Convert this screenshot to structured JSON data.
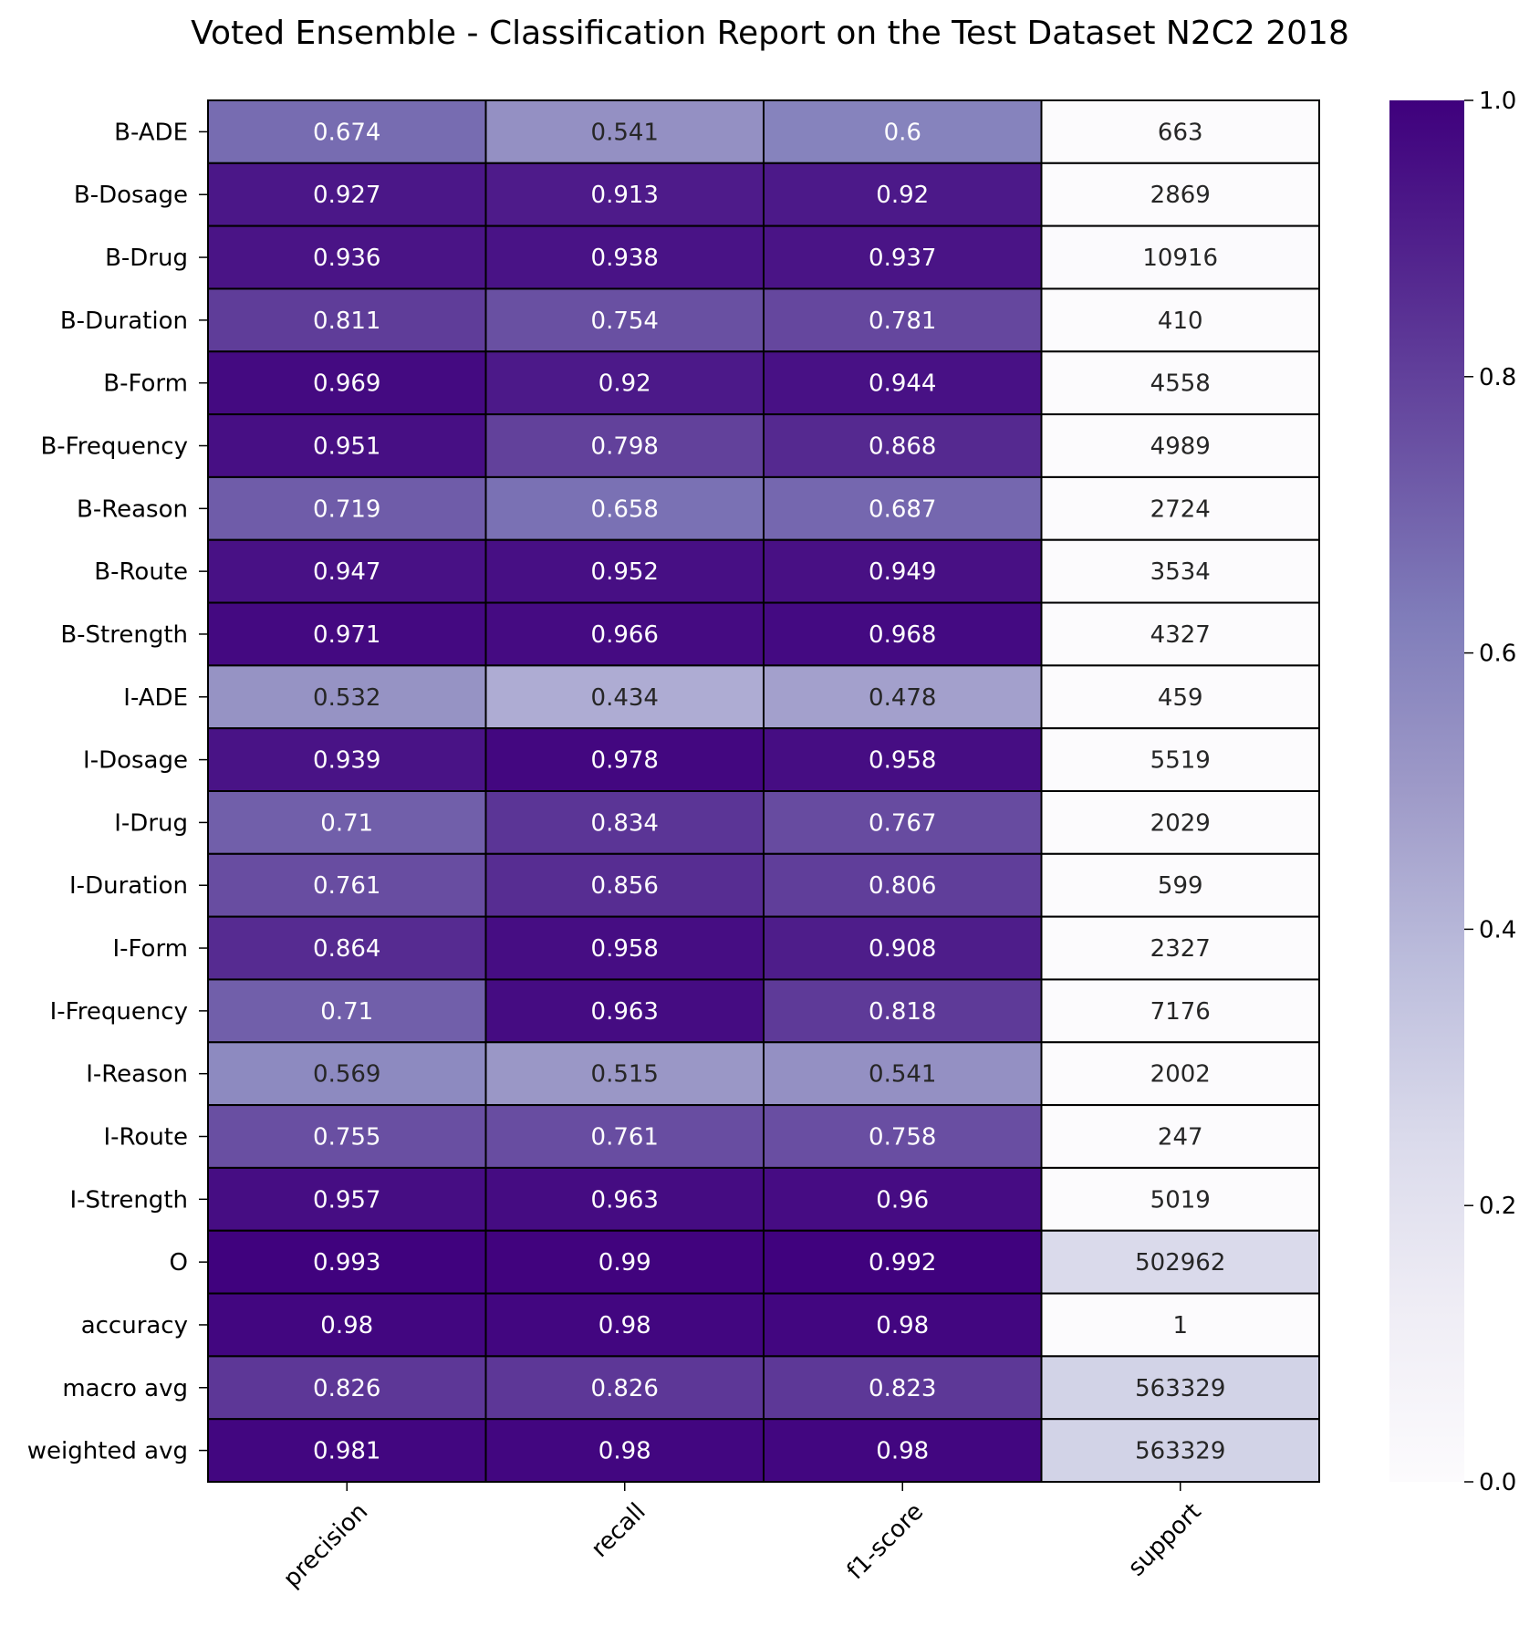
{
  "chart_data": {
    "type": "heatmap",
    "title": "Voted Ensemble - Classification Report on the Test Dataset N2C2 2018",
    "columns": [
      "precision",
      "recall",
      "f1-score",
      "support"
    ],
    "rows": [
      "B-ADE",
      "B-Dosage",
      "B-Drug",
      "B-Duration",
      "B-Form",
      "B-Frequency",
      "B-Reason",
      "B-Route",
      "B-Strength",
      "I-ADE",
      "I-Dosage",
      "I-Drug",
      "I-Duration",
      "I-Form",
      "I-Frequency",
      "I-Reason",
      "I-Route",
      "I-Strength",
      "O",
      "accuracy",
      "macro avg",
      "weighted avg"
    ],
    "values": [
      [
        0.674,
        0.541,
        0.6,
        663
      ],
      [
        0.927,
        0.913,
        0.92,
        2869
      ],
      [
        0.936,
        0.938,
        0.937,
        10916
      ],
      [
        0.811,
        0.754,
        0.781,
        410
      ],
      [
        0.969,
        0.92,
        0.944,
        4558
      ],
      [
        0.951,
        0.798,
        0.868,
        4989
      ],
      [
        0.719,
        0.658,
        0.687,
        2724
      ],
      [
        0.947,
        0.952,
        0.949,
        3534
      ],
      [
        0.971,
        0.966,
        0.968,
        4327
      ],
      [
        0.532,
        0.434,
        0.478,
        459
      ],
      [
        0.939,
        0.978,
        0.958,
        5519
      ],
      [
        0.71,
        0.834,
        0.767,
        2029
      ],
      [
        0.761,
        0.856,
        0.806,
        599
      ],
      [
        0.864,
        0.958,
        0.908,
        2327
      ],
      [
        0.71,
        0.963,
        0.818,
        7176
      ],
      [
        0.569,
        0.515,
        0.541,
        2002
      ],
      [
        0.755,
        0.761,
        0.758,
        247
      ],
      [
        0.957,
        0.963,
        0.96,
        5019
      ],
      [
        0.993,
        0.99,
        0.992,
        502962
      ],
      [
        0.98,
        0.98,
        0.98,
        1
      ],
      [
        0.826,
        0.826,
        0.823,
        563329
      ],
      [
        0.981,
        0.98,
        0.98,
        563329
      ]
    ],
    "support_color_max": 2000000,
    "colormap": "Purples",
    "colormap_stops": [
      "#fcfbfd",
      "#efedf5",
      "#dadaeb",
      "#bcbddc",
      "#9e9ac8",
      "#807dba",
      "#6a51a3",
      "#54278f",
      "#3f007d"
    ],
    "vmin": 0.0,
    "vmax": 1.0,
    "colorbar_ticks": [
      "0.0",
      "0.2",
      "0.4",
      "0.6",
      "0.8",
      "1.0"
    ],
    "text_color_dark": "#262626",
    "text_color_light": "#ffffff",
    "cell_border_color": "#000000"
  }
}
